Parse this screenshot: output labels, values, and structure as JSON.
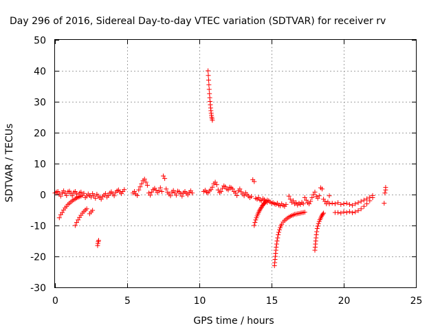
{
  "chart_data": {
    "type": "scatter",
    "title": "Day 296 of 2016, Sidereal Day-to-day VTEC variation (SDTVAR) for receiver rv",
    "xlabel": "GPS time / hours",
    "ylabel": "SDTVAR / TECUs",
    "xlim": [
      0,
      25
    ],
    "ylim": [
      -30,
      50
    ],
    "xticks": [
      "0",
      "5",
      "10",
      "15",
      "20",
      "25"
    ],
    "yticks": [
      "-30",
      "-20",
      "-10",
      "0",
      "10",
      "20",
      "30",
      "40",
      "50"
    ],
    "grid": true,
    "marker": "plus",
    "color": "#ff0000",
    "series": [
      {
        "x": [
          0.0,
          0.1,
          0.2,
          0.3,
          0.4,
          0.5,
          0.6,
          0.7,
          0.8,
          0.9,
          1.0,
          1.1,
          1.2,
          1.3,
          1.4,
          1.5,
          1.6,
          1.7,
          1.8,
          1.9,
          2.0,
          2.1,
          2.2,
          2.3,
          2.4,
          2.5,
          2.6,
          2.7,
          2.8,
          2.9,
          3.0,
          3.1,
          3.2,
          3.3,
          3.4,
          3.5,
          3.6,
          3.7,
          3.8,
          3.9,
          4.0,
          4.1,
          4.2,
          4.3,
          4.4,
          4.5,
          4.6,
          4.7,
          4.8
        ],
        "y": [
          0.5,
          0.8,
          1.0,
          0.2,
          -0.5,
          0.6,
          1.2,
          0.4,
          -0.3,
          0.9,
          1.1,
          0.3,
          -0.4,
          0.7,
          1.0,
          0.2,
          -0.6,
          0.5,
          0.8,
          -0.2,
          0.4,
          -1.0,
          -0.5,
          0.2,
          -0.3,
          -0.8,
          0.3,
          -0.4,
          -1.2,
          0.1,
          -0.5,
          -1.0,
          -1.5,
          -0.6,
          -0.2,
          0.3,
          -0.8,
          -0.3,
          0.5,
          0.9,
          0.2,
          -0.4,
          0.7,
          1.2,
          1.5,
          0.8,
          0.3,
          1.0,
          1.6
        ]
      },
      {
        "x": [
          0.3,
          0.4,
          0.5,
          0.6,
          0.7,
          0.8,
          0.9,
          1.0,
          1.1,
          1.2,
          1.3,
          1.4,
          1.5,
          1.6,
          1.7,
          1.8
        ],
        "y": [
          -7.5,
          -6.5,
          -5.8,
          -5.0,
          -4.3,
          -3.8,
          -3.2,
          -2.8,
          -2.4,
          -2.0,
          -1.7,
          -1.4,
          -1.1,
          -0.9,
          -0.7,
          -0.5
        ]
      },
      {
        "x": [
          1.4,
          1.5,
          1.6,
          1.7,
          1.8,
          1.9,
          2.0,
          2.1,
          2.2
        ],
        "y": [
          -10.0,
          -9.0,
          -8.2,
          -7.4,
          -6.7,
          -6.0,
          -5.5,
          -5.0,
          -4.6
        ]
      },
      {
        "x": [
          2.4,
          2.5,
          2.6
        ],
        "y": [
          -6.2,
          -5.6,
          -5.1
        ]
      },
      {
        "x": [
          2.95,
          2.97,
          3.0,
          3.02
        ],
        "y": [
          -16.5,
          -15.8,
          -15.2,
          -14.8
        ]
      },
      {
        "x": [
          5.4,
          5.5,
          5.6,
          5.7,
          5.8,
          5.9,
          6.0,
          6.1,
          6.2,
          6.3,
          6.4,
          6.5,
          6.6,
          6.7,
          6.8,
          6.9,
          7.0,
          7.1,
          7.2,
          7.3,
          7.4,
          7.5,
          7.6,
          7.7,
          7.8,
          7.9,
          8.0,
          8.1,
          8.2,
          8.3,
          8.4,
          8.5,
          8.6,
          8.7,
          8.8,
          8.9,
          9.0,
          9.1,
          9.2,
          9.3,
          9.4,
          9.5
        ],
        "y": [
          0.5,
          1.0,
          0.2,
          -0.3,
          1.5,
          2.5,
          3.5,
          4.5,
          5.0,
          4.0,
          3.0,
          0.5,
          -0.2,
          0.8,
          1.6,
          2.0,
          1.4,
          0.6,
          1.2,
          2.2,
          1.0,
          6.0,
          5.2,
          1.8,
          0.7,
          0.2,
          -0.4,
          0.8,
          1.3,
          0.5,
          -0.2,
          1.1,
          0.9,
          0.3,
          -0.5,
          0.6,
          1.0,
          0.4,
          -0.1,
          0.7,
          1.2,
          0.5
        ]
      },
      {
        "x": [
          10.6,
          10.62,
          10.64,
          10.66,
          10.68,
          10.7,
          10.72,
          10.74,
          10.76,
          10.78,
          10.8,
          10.82,
          10.84,
          10.86,
          10.88,
          10.9
        ],
        "y": [
          40.0,
          38.5,
          37.0,
          35.5,
          34.0,
          32.6,
          31.3,
          30.1,
          29.0,
          28.0,
          27.1,
          26.3,
          25.6,
          25.0,
          24.5,
          24.0
        ]
      },
      {
        "x": [
          10.3,
          10.4,
          10.5,
          10.6,
          10.7,
          10.8,
          10.9,
          11.0,
          11.1,
          11.2,
          11.3,
          11.4,
          11.5,
          11.6,
          11.7,
          11.8,
          11.9,
          12.0,
          12.1,
          12.2,
          12.3,
          12.4,
          12.5,
          12.6,
          12.7,
          12.8,
          12.9,
          13.0,
          13.1,
          13.2,
          13.3,
          13.4,
          13.5,
          13.6,
          13.7,
          13.8,
          13.9,
          14.0,
          14.1,
          14.2,
          14.3,
          14.4,
          14.5,
          14.6,
          14.7,
          14.8,
          14.9,
          15.0,
          15.1,
          15.2,
          15.3,
          15.4,
          15.5,
          15.6,
          15.7,
          15.8,
          15.9,
          16.0
        ],
        "y": [
          1.0,
          1.4,
          0.8,
          0.5,
          1.2,
          1.6,
          2.4,
          3.5,
          4.0,
          3.2,
          1.5,
          0.6,
          1.0,
          2.0,
          2.8,
          2.5,
          1.8,
          1.5,
          2.4,
          2.2,
          1.8,
          1.0,
          0.5,
          -0.3,
          1.2,
          1.8,
          0.9,
          0.2,
          -0.4,
          0.6,
          0.0,
          -0.5,
          -1.0,
          -0.6,
          4.8,
          4.2,
          -1.2,
          -1.5,
          -1.0,
          -1.8,
          -2.0,
          -1.3,
          -1.7,
          -2.2,
          -2.5,
          -2.0,
          -2.4,
          -2.8,
          -2.6,
          -3.0,
          -3.2,
          -2.8,
          -3.4,
          -3.6,
          -3.0,
          -3.5,
          -3.8,
          -3.2
        ]
      },
      {
        "x": [
          13.8,
          13.85,
          13.9,
          13.95,
          14.0,
          14.05,
          14.1,
          14.15,
          14.2,
          14.25,
          14.3,
          14.35,
          14.4,
          14.45,
          14.5,
          14.55,
          14.6,
          14.7
        ],
        "y": [
          -10.0,
          -9.0,
          -8.2,
          -7.5,
          -6.9,
          -6.3,
          -5.8,
          -5.3,
          -4.9,
          -4.5,
          -4.1,
          -3.7,
          -3.4,
          -3.1,
          -2.8,
          -2.5,
          -2.2,
          -1.8
        ]
      },
      {
        "x": [
          15.2,
          15.22,
          15.24,
          15.26,
          15.28,
          15.3,
          15.32,
          15.35,
          15.38,
          15.42,
          15.46,
          15.5,
          15.55,
          15.6,
          15.65,
          15.7,
          15.8,
          15.9,
          16.0,
          16.1,
          16.2,
          16.3,
          16.4,
          16.5,
          16.6,
          16.7,
          16.8,
          16.9,
          17.0,
          17.1,
          17.2,
          17.3
        ],
        "y": [
          -23.0,
          -22.0,
          -21.0,
          -20.0,
          -19.0,
          -18.0,
          -17.0,
          -16.0,
          -15.0,
          -14.0,
          -13.0,
          -12.2,
          -11.4,
          -10.7,
          -10.1,
          -9.6,
          -8.9,
          -8.4,
          -8.0,
          -7.6,
          -7.3,
          -7.0,
          -6.8,
          -6.6,
          -6.4,
          -6.3,
          -6.2,
          -6.1,
          -6.0,
          -5.9,
          -5.8,
          -5.7
        ]
      },
      {
        "x": [
          16.2,
          16.3,
          16.4,
          16.5,
          16.6,
          16.7,
          16.8,
          16.9,
          17.0,
          17.1,
          17.2,
          17.3,
          17.4,
          17.5,
          17.6,
          17.7,
          17.8,
          17.9,
          18.0,
          18.1,
          18.2,
          18.3,
          18.4,
          18.5,
          18.6,
          18.7,
          18.8,
          18.9,
          19.0
        ],
        "y": [
          -0.5,
          -1.5,
          -2.5,
          -2.0,
          -3.0,
          -2.6,
          -3.4,
          -2.8,
          -3.2,
          -2.5,
          -3.0,
          -1.0,
          -1.8,
          -2.6,
          -3.0,
          -2.2,
          -1.0,
          0.0,
          0.8,
          -0.6,
          -1.2,
          -0.4,
          2.2,
          1.8,
          -1.5,
          -2.2,
          -3.0,
          -2.4,
          -0.4
        ]
      },
      {
        "x": [
          18.0,
          18.02,
          18.04,
          18.06,
          18.08,
          18.1,
          18.13,
          18.16,
          18.2,
          18.25,
          18.3,
          18.35,
          18.4,
          18.45,
          18.5,
          18.55,
          18.6
        ],
        "y": [
          -18.0,
          -17.0,
          -16.0,
          -15.0,
          -14.0,
          -13.0,
          -12.0,
          -11.0,
          -10.2,
          -9.4,
          -8.7,
          -8.1,
          -7.6,
          -7.1,
          -6.7,
          -6.3,
          -6.0
        ]
      },
      {
        "x": [
          19.0,
          19.2,
          19.4,
          19.6,
          19.8,
          20.0,
          20.2,
          20.4,
          20.6,
          20.8,
          21.0,
          21.2,
          21.4,
          21.6,
          21.8,
          22.0
        ],
        "y": [
          -3.0,
          -2.8,
          -3.0,
          -2.6,
          -3.2,
          -3.0,
          -2.8,
          -3.2,
          -3.5,
          -3.0,
          -2.6,
          -2.2,
          -1.8,
          -1.4,
          -0.9,
          -0.3
        ]
      },
      {
        "x": [
          19.4,
          19.6,
          19.8,
          20.0,
          20.2,
          20.4,
          20.6,
          20.8,
          21.0,
          21.2,
          21.4,
          21.6,
          21.8,
          22.0
        ],
        "y": [
          -5.8,
          -5.8,
          -6.0,
          -5.6,
          -5.8,
          -5.5,
          -5.9,
          -5.6,
          -5.2,
          -4.6,
          -3.8,
          -3.0,
          -2.0,
          -1.0
        ]
      },
      {
        "x": [
          22.8,
          22.85,
          22.9,
          22.9
        ],
        "y": [
          -2.8,
          0.5,
          1.5,
          2.3
        ]
      }
    ]
  }
}
